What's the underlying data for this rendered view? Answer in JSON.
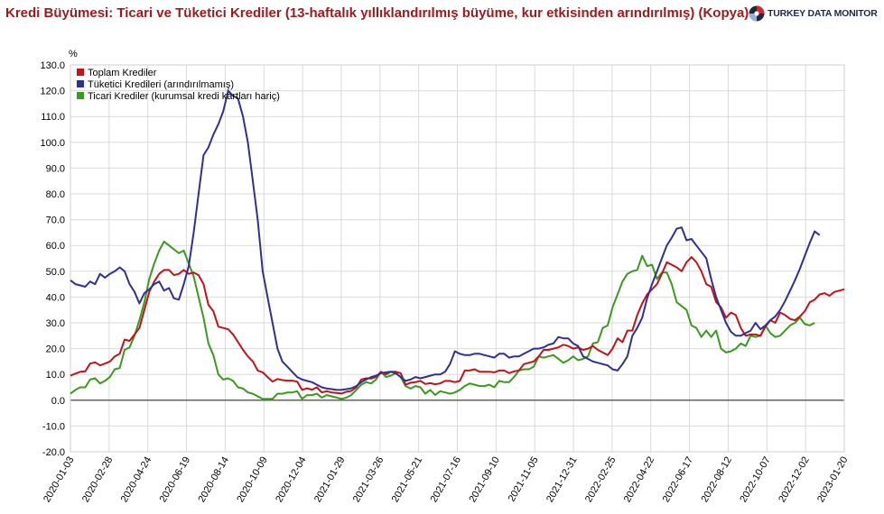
{
  "header": {
    "title": "Kredi Büyümesi: Ticari ve Tüketici Krediler (13-haftalık yıllıklandırılmış büyüme, kur etkisinden arındırılmış) (Kopya)",
    "logo_text": "TURKEY DATA MONITOR"
  },
  "chart_data": {
    "type": "line",
    "title": "Kredi Büyümesi: Ticari ve Tüketici Krediler (13-haftalık yıllıklandırılmış büyüme, kur etkisinden arındırılmış) (Kopya)",
    "ylabel": "%",
    "ylim": [
      -20,
      130
    ],
    "yticks": [
      -20,
      -10,
      0,
      10,
      20,
      30,
      40,
      50,
      60,
      70,
      80,
      90,
      100,
      110,
      120,
      130
    ],
    "ytick_labels": [
      "-20.0",
      "-10.0",
      "0.0",
      "10.0",
      "20.0",
      "30.0",
      "40.0",
      "50.0",
      "60.0",
      "70.0",
      "80.0",
      "90.0",
      "100.0",
      "110.0",
      "120.0",
      "130.0"
    ],
    "xtick_labels": [
      "2020-01-03",
      "2020-02-28",
      "2020-04-24",
      "2020-06-19",
      "2020-08-14",
      "2020-10-09",
      "2020-12-04",
      "2021-01-29",
      "2021-03-26",
      "2021-05-21",
      "2021-07-16",
      "2021-09-10",
      "2021-11-05",
      "2021-12-31",
      "2022-02-25",
      "2022-04-22",
      "2022-06-17",
      "2022-08-12",
      "2022-10-07",
      "2022-12-02",
      "2023-01-20"
    ],
    "x_start": "2020-01-03",
    "x_end": "2023-01-20",
    "x_step_weeks": 1,
    "grid": true,
    "legend_position": "top-left",
    "series": [
      {
        "name": "Toplam Krediler",
        "color": "#c0141b",
        "values": [
          9.5,
          10.3,
          11.0,
          11.2,
          14.2,
          14.7,
          13.5,
          14.2,
          15.0,
          17.0,
          18.0,
          23.5,
          23.0,
          25.5,
          28.0,
          35.0,
          42.0,
          46.0,
          49.0,
          50.5,
          50.5,
          48.5,
          49.0,
          50.5,
          49.0,
          49.5,
          48.5,
          45.0,
          37.0,
          34.5,
          28.5,
          28.0,
          27.5,
          25.5,
          22.5,
          19.5,
          17.0,
          15.0,
          11.5,
          10.8,
          9.0,
          7.2,
          8.2,
          7.8,
          7.6,
          7.6,
          7.2,
          4.0,
          4.6,
          4.1,
          5.0,
          3.0,
          3.5,
          3.0,
          2.8,
          2.6,
          3.3,
          3.6,
          5.0,
          8.0,
          8.5,
          8.4,
          9.0,
          11.0,
          10.0,
          11.0,
          11.0,
          10.5,
          6.0,
          6.8,
          7.0,
          7.5,
          6.3,
          6.6,
          6.2,
          6.5,
          7.5,
          7.5,
          7.0,
          7.5,
          11.5,
          11.5,
          12.0,
          11.0,
          11.0,
          11.0,
          10.8,
          11.5,
          11.5,
          10.5,
          11.2,
          11.5,
          14.0,
          14.5,
          15.0,
          17.0,
          19.5,
          19.5,
          20.0,
          20.5,
          21.5,
          21.0,
          20.0,
          20.5,
          19.5,
          20.0,
          21.0,
          19.5,
          18.5,
          17.5,
          20.0,
          24.0,
          22.5,
          27.0,
          27.0,
          33.0,
          37.5,
          41.0,
          43.0,
          45.0,
          49.0,
          53.5,
          52.5,
          51.5,
          50.0,
          53.5,
          55.5,
          53.5,
          50.0,
          45.0,
          44.0,
          38.0,
          36.0,
          32.0,
          34.0,
          33.0,
          28.0,
          25.0,
          25.5,
          25.5,
          25.0,
          28.5,
          31.0,
          30.0,
          34.0,
          33.0,
          31.5,
          31.0,
          32.5,
          34.5,
          38.0,
          39.0,
          41.0,
          41.5,
          40.5,
          42.0,
          42.5,
          43.0
        ]
      },
      {
        "name": "Tüketici Kredileri (arındırılmamış)",
        "color": "#2e3192",
        "values": [
          46.5,
          45.0,
          44.5,
          44.0,
          46.0,
          45.0,
          49.0,
          47.5,
          49.0,
          50.0,
          51.5,
          50.0,
          45.0,
          42.0,
          37.5,
          41.5,
          43.0,
          45.0,
          46.0,
          42.5,
          43.5,
          39.5,
          39.0,
          45.0,
          52.0,
          65.0,
          80.0,
          95.0,
          98.0,
          103.0,
          107.0,
          112.0,
          120.0,
          118.0,
          117.0,
          110.0,
          100.0,
          85.0,
          70.0,
          50.0,
          40.0,
          30.0,
          20.0,
          15.0,
          13.0,
          11.0,
          9.0,
          8.0,
          7.5,
          7.0,
          6.0,
          5.0,
          4.5,
          4.3,
          4.0,
          4.0,
          4.3,
          4.6,
          5.5,
          7.0,
          8.0,
          9.0,
          9.5,
          10.5,
          10.8,
          11.0,
          10.5,
          9.0,
          7.5,
          8.0,
          9.0,
          8.5,
          9.0,
          9.5,
          10.0,
          10.0,
          11.0,
          14.0,
          19.0,
          18.0,
          17.5,
          17.5,
          18.0,
          18.0,
          17.5,
          17.0,
          16.5,
          18.0,
          18.0,
          16.5,
          17.0,
          17.0,
          18.0,
          19.0,
          20.0,
          20.0,
          20.5,
          21.5,
          22.0,
          24.5,
          24.0,
          24.0,
          22.0,
          21.0,
          17.0,
          16.0,
          15.0,
          14.5,
          14.0,
          13.5,
          12.0,
          11.5,
          14.0,
          17.0,
          25.0,
          28.0,
          32.0,
          39.5,
          45.0,
          50.0,
          55.0,
          60.0,
          63.0,
          66.5,
          67.0,
          62.0,
          62.5,
          60.0,
          57.5,
          55.0,
          47.0,
          40.0,
          35.0,
          30.0,
          26.5,
          25.0,
          25.0,
          26.0,
          27.0,
          30.0,
          27.5,
          29.0,
          31.0,
          32.5,
          35.0,
          38.5,
          42.5,
          46.5,
          51.0,
          56.0,
          61.0,
          65.5,
          64.0
        ]
      },
      {
        "name": "Ticari Krediler (kurumsal kredi kartları hariç)",
        "color": "#3a9a1f",
        "values": [
          2.5,
          4.0,
          5.0,
          5.0,
          8.0,
          8.5,
          6.5,
          7.5,
          9.0,
          12.0,
          12.5,
          19.5,
          20.5,
          25.0,
          31.0,
          38.0,
          47.0,
          53.0,
          58.0,
          61.5,
          60.0,
          58.5,
          57.0,
          58.0,
          53.0,
          48.0,
          40.0,
          32.0,
          22.0,
          17.5,
          10.0,
          8.0,
          8.5,
          7.5,
          5.0,
          4.5,
          3.0,
          2.5,
          1.5,
          0.5,
          0.5,
          0.5,
          2.5,
          2.5,
          3.0,
          3.0,
          3.5,
          0.5,
          2.0,
          2.0,
          2.5,
          1.0,
          2.0,
          1.5,
          1.0,
          0.5,
          1.0,
          2.0,
          4.0,
          6.0,
          7.0,
          6.5,
          8.0,
          11.0,
          9.0,
          9.5,
          10.5,
          9.0,
          5.5,
          4.5,
          5.5,
          5.0,
          2.5,
          4.0,
          2.0,
          3.5,
          3.0,
          2.5,
          3.0,
          4.0,
          5.5,
          6.5,
          6.0,
          5.5,
          5.5,
          6.0,
          5.0,
          7.5,
          7.0,
          7.0,
          9.0,
          11.5,
          12.0,
          12.0,
          13.0,
          17.0,
          16.5,
          17.0,
          17.5,
          16.0,
          14.5,
          15.5,
          17.0,
          15.5,
          16.0,
          17.0,
          22.0,
          22.5,
          28.0,
          29.0,
          36.0,
          41.0,
          46.0,
          49.0,
          50.0,
          50.5,
          56.0,
          52.0,
          52.5,
          47.0,
          49.5,
          49.5,
          45.0,
          38.0,
          36.5,
          35.0,
          29.0,
          28.0,
          24.5,
          27.0,
          24.5,
          27.0,
          20.0,
          18.5,
          19.0,
          20.0,
          22.0,
          21.0,
          25.0,
          24.5,
          25.0,
          29.0,
          26.0,
          24.5,
          25.0,
          27.0,
          29.0,
          30.0,
          32.0,
          29.5,
          29.0,
          30.0
        ]
      }
    ]
  }
}
